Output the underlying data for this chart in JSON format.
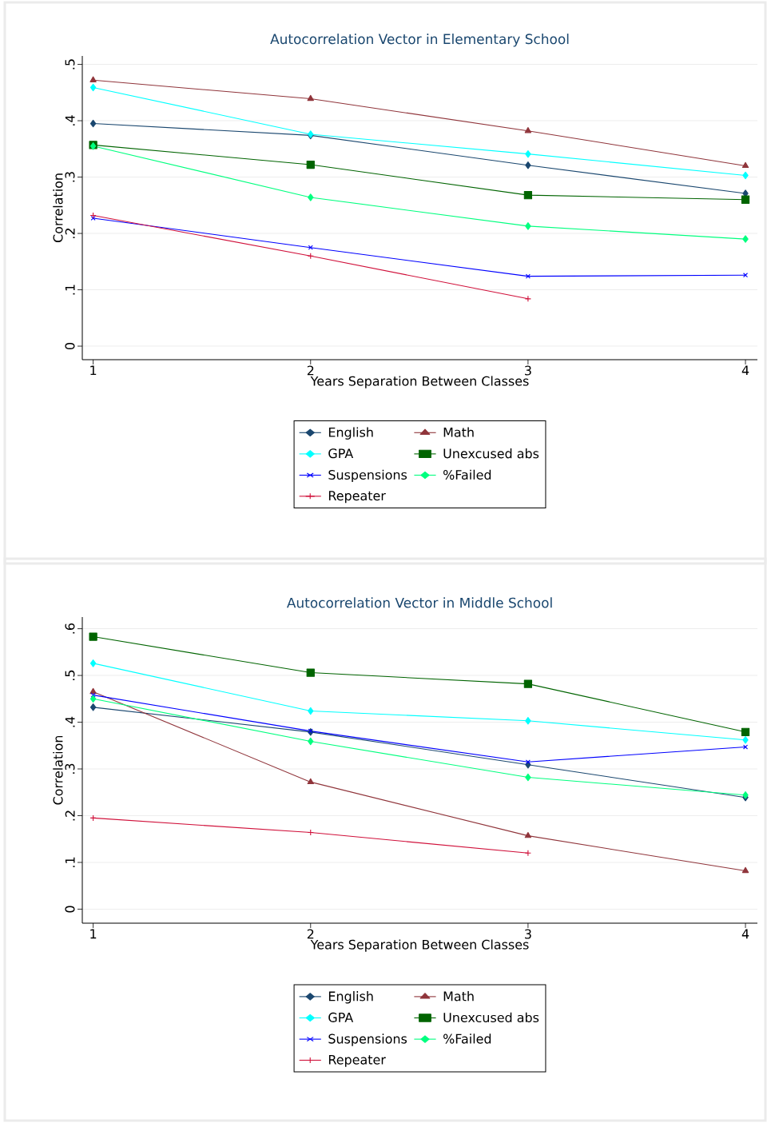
{
  "chart_data": [
    {
      "type": "line",
      "title": "Autocorrelation Vector in Elementary School",
      "xlabel": "Years Separation Between Classes",
      "ylabel": "Correlation",
      "x": [
        1,
        2,
        3,
        4
      ],
      "xlim": [
        0.95,
        4.055
      ],
      "xticks": [
        1,
        2,
        3,
        4
      ],
      "ylim": [
        -0.024,
        0.515
      ],
      "yticks": [
        0,
        {
          "value": 0.1,
          "label": ".1"
        },
        {
          "value": 0.2,
          "label": ".2"
        },
        {
          "value": 0.3,
          "label": ".3"
        },
        {
          "value": 0.4,
          "label": ".4"
        },
        {
          "value": 0.5,
          "label": ".5"
        }
      ],
      "grid": "y",
      "legend": "bottom",
      "line_style": "solid",
      "series": [
        {
          "name": "English",
          "color": "#1a476f",
          "marker": "diamond",
          "values": [
            0.395,
            0.374,
            0.321,
            0.271
          ]
        },
        {
          "name": "Math",
          "color": "#90353b",
          "marker": "triangle",
          "values": [
            0.472,
            0.439,
            0.382,
            0.32
          ]
        },
        {
          "name": "GPA",
          "color": "#00ffff",
          "marker": "diamond",
          "values": [
            0.459,
            0.376,
            0.341,
            0.303
          ]
        },
        {
          "name": "Unexcused abs",
          "color": "#006400",
          "marker": "square",
          "values": [
            0.357,
            0.322,
            0.268,
            0.26
          ]
        },
        {
          "name": "Suspensions",
          "color": "#0000ff",
          "marker": "cross",
          "values": [
            0.227,
            0.175,
            0.124,
            0.126
          ]
        },
        {
          "name": "%Failed",
          "color": "#00ff7f",
          "marker": "diamond",
          "values": [
            0.355,
            0.264,
            0.213,
            0.19
          ]
        },
        {
          "name": "Repeater",
          "color": "#d0103a",
          "marker": "plus",
          "values": [
            0.232,
            0.16,
            0.084,
            null
          ]
        }
      ]
    },
    {
      "type": "line",
      "title": "Autocorrelation Vector in Middle School",
      "xlabel": "Years Separation Between Classes",
      "ylabel": "Correlation",
      "x": [
        1,
        2,
        3,
        4
      ],
      "xlim": [
        0.95,
        4.055
      ],
      "xticks": [
        1,
        2,
        3,
        4
      ],
      "ylim": [
        -0.03,
        0.625
      ],
      "yticks": [
        0,
        {
          "value": 0.1,
          "label": ".1"
        },
        {
          "value": 0.2,
          "label": ".2"
        },
        {
          "value": 0.3,
          "label": ".3"
        },
        {
          "value": 0.4,
          "label": ".4"
        },
        {
          "value": 0.5,
          "label": ".5"
        },
        {
          "value": 0.6,
          "label": ".6"
        }
      ],
      "grid": "y",
      "legend": "bottom",
      "line_style": "solid",
      "series": [
        {
          "name": "English",
          "color": "#1a476f",
          "marker": "diamond",
          "values": [
            0.432,
            0.379,
            0.309,
            0.239
          ]
        },
        {
          "name": "Math",
          "color": "#90353b",
          "marker": "triangle",
          "values": [
            0.465,
            0.272,
            0.157,
            0.082
          ]
        },
        {
          "name": "GPA",
          "color": "#00ffff",
          "marker": "diamond",
          "values": [
            0.526,
            0.424,
            0.403,
            0.362
          ]
        },
        {
          "name": "Unexcused abs",
          "color": "#006400",
          "marker": "square",
          "values": [
            0.583,
            0.506,
            0.482,
            0.379
          ]
        },
        {
          "name": "Suspensions",
          "color": "#0000ff",
          "marker": "cross",
          "values": [
            0.458,
            0.381,
            0.315,
            0.347
          ]
        },
        {
          "name": "%Failed",
          "color": "#00ff7f",
          "marker": "diamond",
          "values": [
            0.45,
            0.359,
            0.282,
            0.244
          ]
        },
        {
          "name": "Repeater",
          "color": "#d0103a",
          "marker": "plus",
          "values": [
            0.195,
            0.164,
            0.12,
            null
          ]
        }
      ]
    }
  ]
}
